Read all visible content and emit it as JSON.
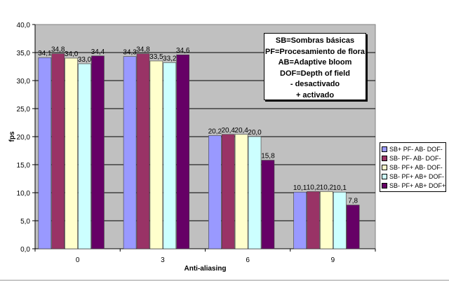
{
  "chart_data": {
    "type": "bar",
    "title": "",
    "xlabel": "Anti-aliasing",
    "ylabel": "fps",
    "ylim": [
      0,
      40
    ],
    "yticks": [
      "0,0",
      "5,0",
      "10,0",
      "15,0",
      "20,0",
      "25,0",
      "30,0",
      "35,0",
      "40,0"
    ],
    "grid": true,
    "legend_position": "right",
    "categories": [
      "0",
      "3",
      "6",
      "9"
    ],
    "series": [
      {
        "name": "SB+ PF- AB- DOF-",
        "color": "#9999FF",
        "values": [
          34.1,
          34.3,
          20.2,
          10.1
        ],
        "labels": [
          "34,1",
          "34,3",
          "20,2",
          "10,1"
        ]
      },
      {
        "name": "SB- PF- AB- DOF-",
        "color": "#993366",
        "values": [
          34.8,
          34.8,
          20.4,
          10.2
        ],
        "labels": [
          "34,8",
          "34,8",
          "20,4",
          "10,2"
        ]
      },
      {
        "name": "SB- PF+ AB- DOF-",
        "color": "#FFFFCC",
        "values": [
          34.0,
          33.5,
          20.4,
          10.2
        ],
        "labels": [
          "34,0",
          "33,5",
          "20,4",
          "10,2"
        ]
      },
      {
        "name": "SB- PF+ AB+ DOF-",
        "color": "#CCFFFF",
        "values": [
          33.0,
          33.2,
          20.0,
          10.1
        ],
        "labels": [
          "33,0",
          "33,2",
          "20,0",
          "10,1"
        ]
      },
      {
        "name": "SB- PF+ AB+ DOF+",
        "color": "#660066",
        "values": [
          34.4,
          34.6,
          15.8,
          7.8
        ],
        "labels": [
          "34,4",
          "34,6",
          "15,8",
          "7,8"
        ]
      }
    ],
    "plot_background": "#C0C0C0",
    "annotation": [
      "SB=Sombras básicas",
      "PF=Procesamiento de flora",
      "AB=Adaptive bloom",
      "DOF=Depth of field",
      "- desactivado",
      "+ activado"
    ]
  }
}
